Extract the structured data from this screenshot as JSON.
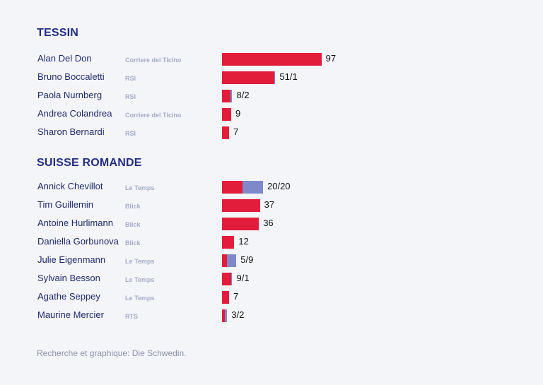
{
  "colors": {
    "primary": "#e21d3b",
    "secondary": "#7f88c8",
    "heading": "#232d82",
    "name": "#1f2a6b",
    "outlet": "#a7abc8"
  },
  "chart_data": {
    "type": "bar",
    "orientation": "horizontal",
    "stacked": true,
    "series_colors": [
      "#e21d3b",
      "#7f88c8"
    ],
    "groups": [
      {
        "title": "TESSIN",
        "rows": [
          {
            "name": "Alan Del Don",
            "outlet": "Corriere del Ticino",
            "values": [
              97,
              0
            ],
            "label": "97"
          },
          {
            "name": "Bruno Boccaletti",
            "outlet": "RSI",
            "values": [
              51,
              1
            ],
            "label": "51/1"
          },
          {
            "name": "Paola Nurnberg",
            "outlet": "RSI",
            "values": [
              8,
              2
            ],
            "label": "8/2"
          },
          {
            "name": "Andrea Colandrea",
            "outlet": "Corriere del Ticino",
            "values": [
              9,
              0
            ],
            "label": "9"
          },
          {
            "name": "Sharon Bernardi",
            "outlet": "RSI",
            "values": [
              7,
              0
            ],
            "label": "7"
          }
        ]
      },
      {
        "title": "SUISSE ROMANDE",
        "rows": [
          {
            "name": "Annick Chevillot",
            "outlet": "Le Temps",
            "values": [
              20,
              20
            ],
            "label": "20/20"
          },
          {
            "name": "Tim Guillemin",
            "outlet": "Blick",
            "values": [
              37,
              0
            ],
            "label": "37"
          },
          {
            "name": "Antoine Hurlimann",
            "outlet": "Blick",
            "values": [
              36,
              0
            ],
            "label": "36"
          },
          {
            "name": "Daniella Gorbunova",
            "outlet": "Blick",
            "values": [
              12,
              0
            ],
            "label": "12"
          },
          {
            "name": "Julie Eigenmann",
            "outlet": "Le Temps",
            "values": [
              5,
              9
            ],
            "label": "5/9"
          },
          {
            "name": "Sylvain Besson",
            "outlet": "Le Temps",
            "values": [
              9,
              1
            ],
            "label": "9/1"
          },
          {
            "name": "Agathe Seppey",
            "outlet": "Le Temps",
            "values": [
              7,
              0
            ],
            "label": "7"
          },
          {
            "name": "Maurine Mercier",
            "outlet": "RTS",
            "values": [
              3,
              2
            ],
            "label": "3/2"
          }
        ]
      }
    ]
  },
  "source": "Recherche et graphique: Die Schwedin."
}
